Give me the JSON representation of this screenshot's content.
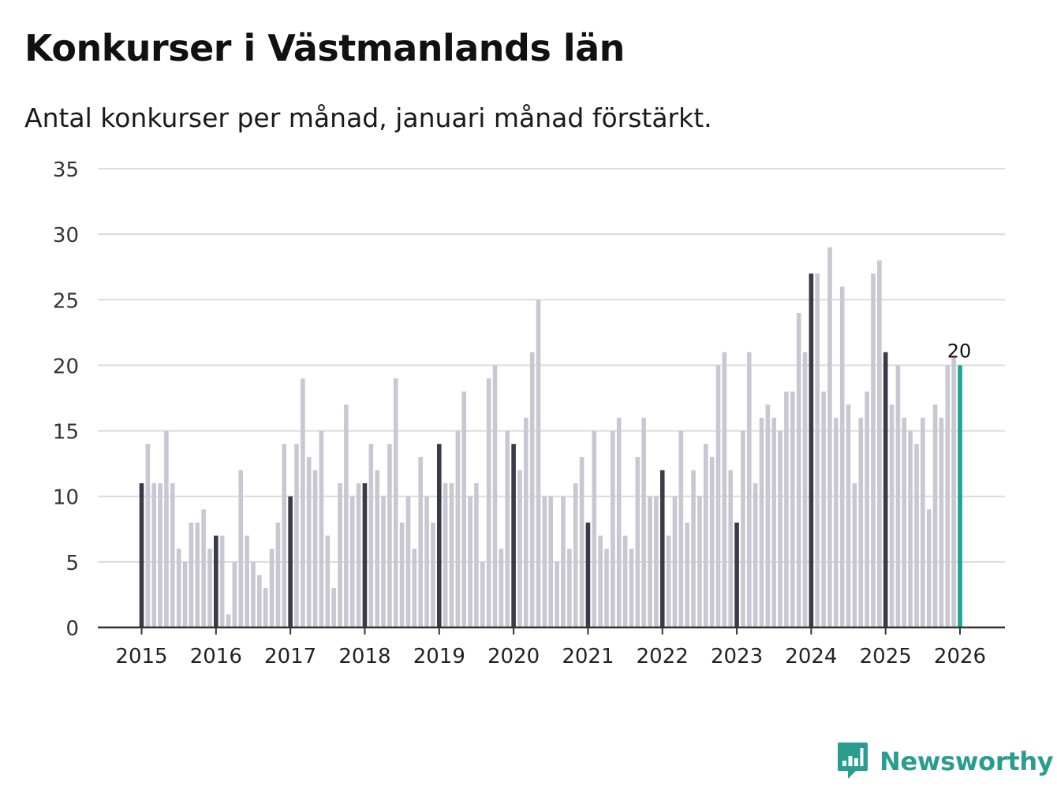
{
  "header": {
    "title": "Konkurser i Västmanlands län",
    "subtitle": "Antal konkurser per månad, januari månad förstärkt."
  },
  "brand": {
    "name": "Newsworthy",
    "color": "#2a9d8f"
  },
  "colors": {
    "bar": "#c8c7d2",
    "january": "#3b3a48",
    "latest": "#1aa596",
    "grid": "#dcdcdc",
    "axis": "#333333"
  },
  "chart_data": {
    "type": "bar",
    "title": "Konkurser i Västmanlands län",
    "subtitle": "Antal konkurser per månad, januari månad förstärkt.",
    "xlabel": "",
    "ylabel": "",
    "ylim": [
      0,
      35
    ],
    "yticks": [
      0,
      5,
      10,
      15,
      20,
      25,
      30,
      35
    ],
    "year_labels": [
      "2015",
      "2016",
      "2017",
      "2018",
      "2019",
      "2020",
      "2021",
      "2022",
      "2023",
      "2024",
      "2025",
      "2026"
    ],
    "start": "2015-01",
    "values": [
      11,
      14,
      11,
      11,
      15,
      11,
      6,
      5,
      8,
      8,
      9,
      6,
      7,
      7,
      1,
      5,
      12,
      7,
      5,
      4,
      3,
      6,
      8,
      14,
      10,
      14,
      19,
      13,
      12,
      15,
      7,
      3,
      11,
      17,
      10,
      11,
      11,
      14,
      12,
      10,
      14,
      19,
      8,
      10,
      6,
      13,
      10,
      8,
      14,
      11,
      11,
      15,
      18,
      10,
      11,
      5,
      19,
      20,
      6,
      15,
      14,
      12,
      16,
      21,
      25,
      10,
      10,
      5,
      10,
      6,
      11,
      13,
      8,
      15,
      7,
      6,
      15,
      16,
      7,
      6,
      13,
      16,
      10,
      10,
      12,
      7,
      10,
      15,
      8,
      12,
      10,
      14,
      13,
      20,
      21,
      12,
      8,
      15,
      21,
      11,
      16,
      17,
      16,
      15,
      18,
      18,
      24,
      21,
      27,
      27,
      18,
      29,
      16,
      26,
      17,
      11,
      16,
      18,
      27,
      28,
      21,
      17,
      20,
      16,
      15,
      14,
      16,
      9,
      17,
      16,
      20,
      20.7,
      20
    ],
    "highlight": {
      "january": true,
      "last_label": "20"
    },
    "grid": true,
    "legend": "none"
  }
}
